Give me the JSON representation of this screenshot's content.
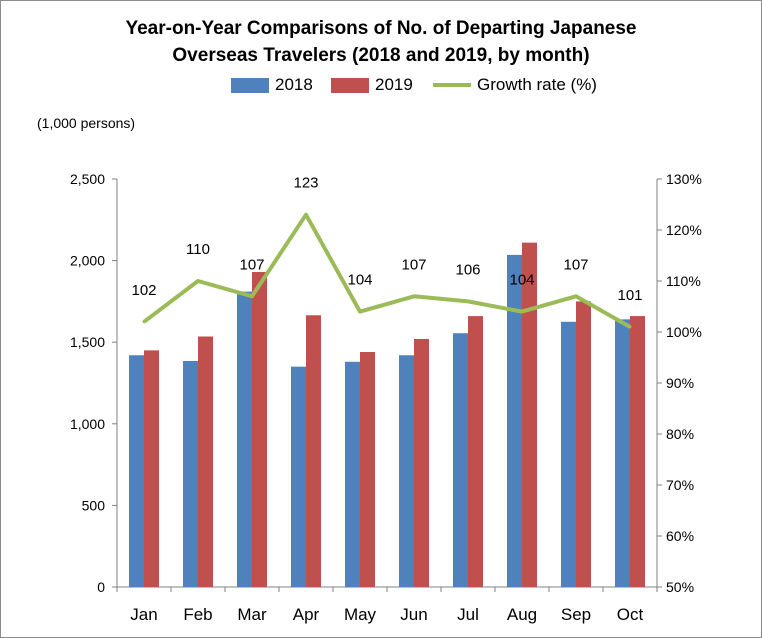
{
  "title_line1": "Year-on-Year Comparisons of No. of Departing Japanese",
  "title_line2": "Overseas Travelers (2018 and 2019, by month)",
  "unit_label": "(1,000 persons)",
  "chart_data": {
    "type": "bar",
    "title": "Year-on-Year Comparisons of No. of Departing Japanese Overseas Travelers (2018 and 2019, by month)",
    "ylabel": "(1,000 persons)",
    "categories": [
      "Jan",
      "Feb",
      "Mar",
      "Apr",
      "May",
      "Jun",
      "Jul",
      "Aug",
      "Sep",
      "Oct"
    ],
    "series": [
      {
        "name": "2018",
        "color": "#4f81bd",
        "values": [
          1420,
          1385,
          1810,
          1350,
          1380,
          1420,
          1555,
          2035,
          1625,
          1640
        ]
      },
      {
        "name": "2019",
        "color": "#c0504d",
        "values": [
          1450,
          1535,
          1930,
          1665,
          1440,
          1520,
          1660,
          2110,
          1750,
          1660
        ]
      }
    ],
    "line_series": {
      "name": "Growth rate (%)",
      "color": "#9bbb59",
      "axis": "right",
      "values": [
        102,
        110,
        107,
        123,
        104,
        107,
        106,
        104,
        107,
        101
      ],
      "labels": [
        "102",
        "110",
        "107",
        "123",
        "104",
        "107",
        "106",
        "104",
        "107",
        "101"
      ]
    },
    "ylim": [
      0,
      2500
    ],
    "yticks": [
      "0",
      "500",
      "1,000",
      "1,500",
      "2,000",
      "2,500"
    ],
    "y2lim": [
      50,
      130
    ],
    "y2ticks": [
      "50%",
      "60%",
      "70%",
      "80%",
      "90%",
      "100%",
      "110%",
      "120%",
      "130%"
    ],
    "legend_position": "top",
    "grid": false
  }
}
